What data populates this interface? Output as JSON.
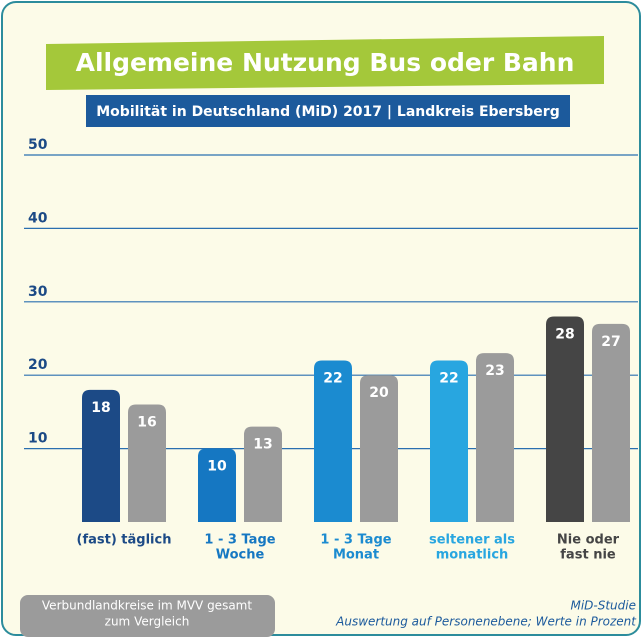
{
  "chart_data": {
    "type": "bar",
    "title": "Allgemeine Nutzung Bus oder Bahn",
    "subtitle": "Mobilität in Deutschland (MiD) 2017 | Landkreis Ebersberg",
    "categories": [
      [
        "(fast) täglich"
      ],
      [
        "1 - 3 Tage",
        "Woche"
      ],
      [
        "1 - 3 Tage",
        "Monat"
      ],
      [
        "seltener als",
        "monatlich"
      ],
      [
        "Nie oder",
        "fast nie"
      ]
    ],
    "series": [
      {
        "colors": [
          "#1c4a86",
          "#1577c2",
          "#1b8bd0",
          "#28a6e0",
          "#454545"
        ],
        "values": [
          18,
          10,
          22,
          22,
          28
        ]
      },
      {
        "name": [
          "Verbundlandkreise im MVV gesamt",
          "zum Vergleich"
        ],
        "color": "#9b9b9b",
        "values": [
          16,
          13,
          20,
          23,
          27
        ]
      }
    ],
    "ylim": [
      0,
      50
    ],
    "yticks": [
      10,
      20,
      30,
      40,
      50
    ],
    "grid": true,
    "source": [
      "MiD-Studie",
      "Auswertung auf Personenebene; Werte in Prozent"
    ]
  }
}
